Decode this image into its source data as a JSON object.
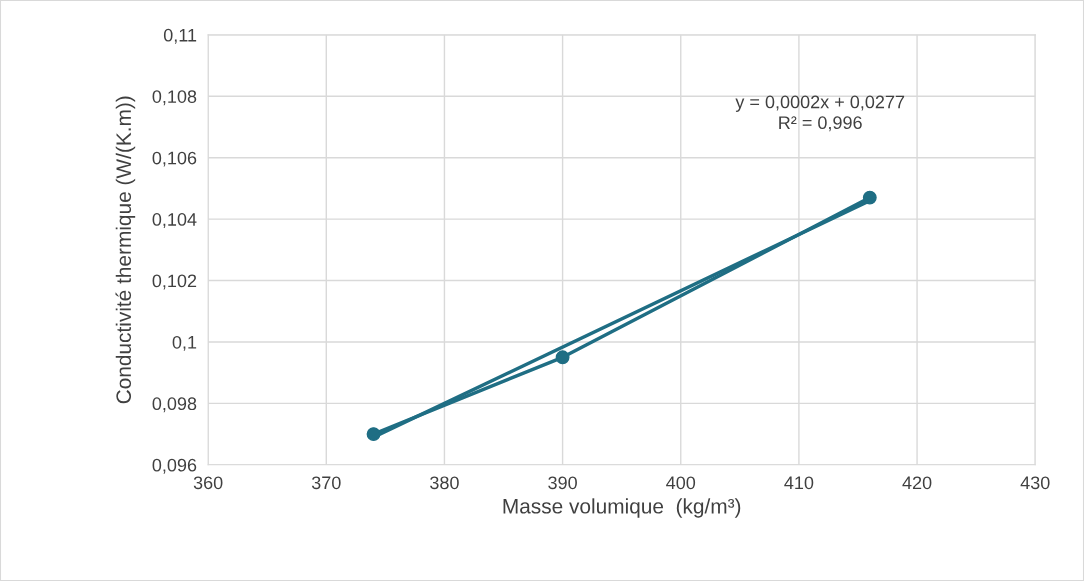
{
  "chart_data": {
    "type": "line",
    "xlabel": "Masse volumique  (kg/m³)",
    "ylabel": "Conductivité thermique (W/(K.m))",
    "x": [
      374,
      390,
      416
    ],
    "series": [
      {
        "color": "#1f6e84",
        "values": [
          0.097,
          0.0995,
          0.1047
        ],
        "marker": "circle"
      },
      {
        "type": "line",
        "color": "#1f6e84",
        "x": [
          374,
          416
        ],
        "values": [
          0.0969,
          0.1046
        ],
        "marker": "none"
      }
    ],
    "xlim": [
      360,
      430
    ],
    "xticks": [
      360,
      370,
      380,
      390,
      400,
      410,
      420,
      430
    ],
    "ylim": [
      0.096,
      0.11
    ],
    "yticks": [
      {
        "value": 0.096,
        "label": "0,096"
      },
      {
        "value": 0.098,
        "label": "0,098"
      },
      {
        "value": 0.1,
        "label": "0,1"
      },
      {
        "value": 0.102,
        "label": "0,102"
      },
      {
        "value": 0.104,
        "label": "0,104"
      },
      {
        "value": 0.106,
        "label": "0,106"
      },
      {
        "value": 0.108,
        "label": "0,108"
      },
      {
        "value": 0.11,
        "label": "0,11"
      }
    ],
    "grid": true,
    "annotations": [
      "y = 0,0002x + 0,0277\nR² = 0,996"
    ]
  }
}
